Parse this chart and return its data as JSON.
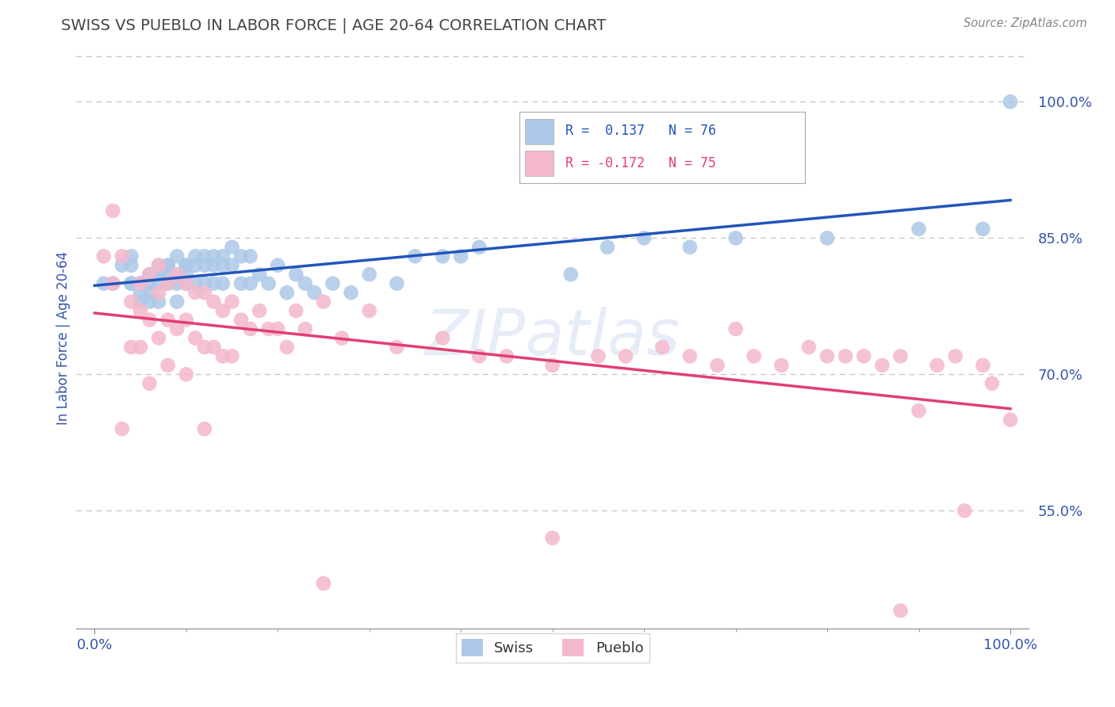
{
  "title": "SWISS VS PUEBLO IN LABOR FORCE | AGE 20-64 CORRELATION CHART",
  "source_text": "Source: ZipAtlas.com",
  "ylabel": "In Labor Force | Age 20-64",
  "xlim": [
    -0.02,
    1.02
  ],
  "ylim": [
    0.42,
    1.06
  ],
  "yticks": [
    0.55,
    0.7,
    0.85,
    1.0
  ],
  "ytick_labels": [
    "55.0%",
    "70.0%",
    "85.0%",
    "100.0%"
  ],
  "xtick_labels": [
    "0.0%",
    "100.0%"
  ],
  "xticks": [
    0.0,
    1.0
  ],
  "swiss_color": "#adc8e8",
  "pueblo_color": "#f4b8cc",
  "swiss_line_color": "#2255bb",
  "pueblo_line_color": "#e04070",
  "swiss_R": 0.137,
  "swiss_N": 76,
  "pueblo_R": -0.172,
  "pueblo_N": 75,
  "watermark": "ZIPatlas",
  "background_color": "#ffffff",
  "title_color": "#444444",
  "axis_label_color": "#3355aa",
  "tick_label_color": "#3355aa",
  "grid_color": "#c8c8c8",
  "legend_border_color": "#aaaaaa",
  "swiss_x": [
    0.01,
    0.02,
    0.03,
    0.04,
    0.04,
    0.04,
    0.04,
    0.05,
    0.05,
    0.05,
    0.05,
    0.06,
    0.06,
    0.06,
    0.06,
    0.06,
    0.07,
    0.07,
    0.07,
    0.07,
    0.07,
    0.08,
    0.08,
    0.08,
    0.08,
    0.09,
    0.09,
    0.09,
    0.09,
    0.1,
    0.1,
    0.1,
    0.1,
    0.11,
    0.11,
    0.11,
    0.12,
    0.12,
    0.12,
    0.13,
    0.13,
    0.13,
    0.14,
    0.14,
    0.14,
    0.15,
    0.15,
    0.16,
    0.16,
    0.17,
    0.17,
    0.18,
    0.19,
    0.2,
    0.21,
    0.22,
    0.23,
    0.24,
    0.26,
    0.28,
    0.3,
    0.33,
    0.35,
    0.38,
    0.4,
    0.42,
    0.48,
    0.52,
    0.56,
    0.6,
    0.65,
    0.7,
    0.8,
    0.9,
    0.97,
    1.0
  ],
  "swiss_y": [
    0.8,
    0.8,
    0.82,
    0.8,
    0.8,
    0.82,
    0.83,
    0.8,
    0.8,
    0.79,
    0.78,
    0.81,
    0.81,
    0.8,
    0.79,
    0.78,
    0.82,
    0.81,
    0.81,
    0.8,
    0.78,
    0.82,
    0.82,
    0.81,
    0.8,
    0.83,
    0.81,
    0.8,
    0.78,
    0.82,
    0.82,
    0.81,
    0.8,
    0.83,
    0.82,
    0.8,
    0.83,
    0.82,
    0.8,
    0.83,
    0.82,
    0.8,
    0.83,
    0.82,
    0.8,
    0.84,
    0.82,
    0.83,
    0.8,
    0.83,
    0.8,
    0.81,
    0.8,
    0.82,
    0.79,
    0.81,
    0.8,
    0.79,
    0.8,
    0.79,
    0.81,
    0.8,
    0.83,
    0.83,
    0.83,
    0.84,
    0.93,
    0.81,
    0.84,
    0.85,
    0.84,
    0.85,
    0.85,
    0.86,
    0.86,
    1.0
  ],
  "pueblo_x": [
    0.01,
    0.02,
    0.02,
    0.03,
    0.04,
    0.04,
    0.05,
    0.05,
    0.05,
    0.06,
    0.06,
    0.07,
    0.07,
    0.07,
    0.08,
    0.08,
    0.08,
    0.09,
    0.09,
    0.1,
    0.1,
    0.1,
    0.11,
    0.11,
    0.12,
    0.12,
    0.13,
    0.13,
    0.14,
    0.14,
    0.15,
    0.15,
    0.16,
    0.17,
    0.18,
    0.19,
    0.2,
    0.21,
    0.22,
    0.23,
    0.25,
    0.27,
    0.3,
    0.33,
    0.38,
    0.42,
    0.45,
    0.5,
    0.55,
    0.58,
    0.62,
    0.65,
    0.68,
    0.7,
    0.72,
    0.75,
    0.78,
    0.8,
    0.82,
    0.84,
    0.86,
    0.88,
    0.9,
    0.92,
    0.94,
    0.95,
    0.97,
    0.98,
    1.0,
    0.03,
    0.06,
    0.12,
    0.25,
    0.5,
    0.88
  ],
  "pueblo_y": [
    0.83,
    0.88,
    0.8,
    0.83,
    0.78,
    0.73,
    0.8,
    0.77,
    0.73,
    0.81,
    0.76,
    0.82,
    0.79,
    0.74,
    0.8,
    0.76,
    0.71,
    0.81,
    0.75,
    0.8,
    0.76,
    0.7,
    0.79,
    0.74,
    0.79,
    0.73,
    0.78,
    0.73,
    0.77,
    0.72,
    0.78,
    0.72,
    0.76,
    0.75,
    0.77,
    0.75,
    0.75,
    0.73,
    0.77,
    0.75,
    0.78,
    0.74,
    0.77,
    0.73,
    0.74,
    0.72,
    0.72,
    0.71,
    0.72,
    0.72,
    0.73,
    0.72,
    0.71,
    0.75,
    0.72,
    0.71,
    0.73,
    0.72,
    0.72,
    0.72,
    0.71,
    0.72,
    0.66,
    0.71,
    0.72,
    0.55,
    0.71,
    0.69,
    0.65,
    0.64,
    0.69,
    0.64,
    0.47,
    0.52,
    0.44
  ]
}
